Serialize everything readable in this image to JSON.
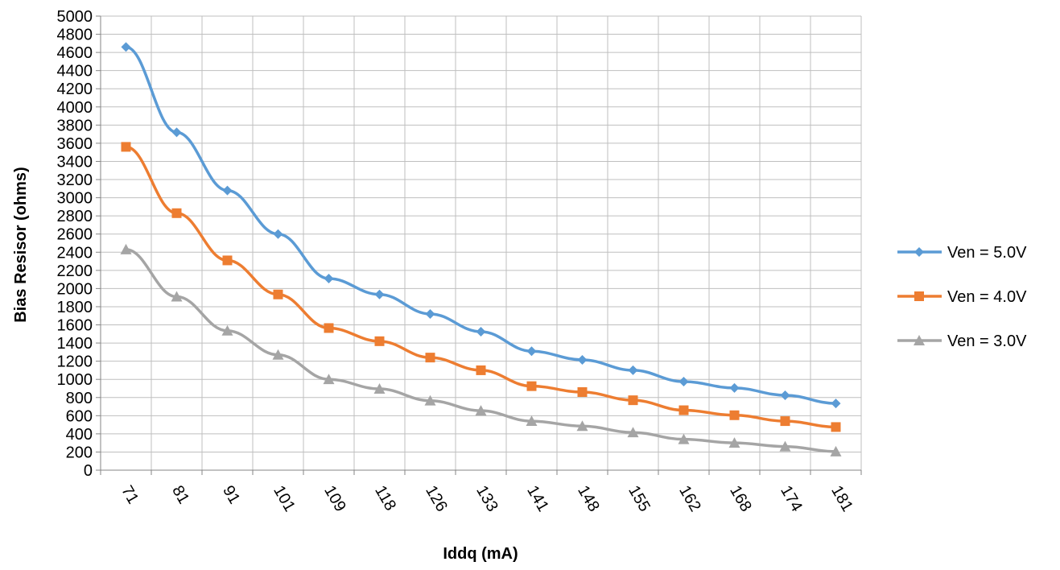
{
  "chart_data": {
    "type": "line",
    "title": "",
    "xlabel": "Iddq (mA)",
    "ylabel": "Bias Resisor (ohms)",
    "categories": [
      "71",
      "81",
      "91",
      "101",
      "109",
      "118",
      "126",
      "133",
      "141",
      "148",
      "155",
      "162",
      "168",
      "174",
      "181"
    ],
    "ylim": [
      0,
      5000
    ],
    "ytick_step": 200,
    "grid": true,
    "legend_position": "right",
    "series": [
      {
        "name": "Ven = 5.0V",
        "color": "#5b9bd5",
        "marker": "diamond",
        "values": [
          4660,
          3720,
          3080,
          2600,
          2110,
          1935,
          1720,
          1525,
          1310,
          1215,
          1100,
          975,
          905,
          825,
          735
        ]
      },
      {
        "name": "Ven = 4.0V",
        "color": "#ed7d31",
        "marker": "square",
        "values": [
          3560,
          2830,
          2310,
          1935,
          1565,
          1420,
          1240,
          1100,
          925,
          860,
          770,
          660,
          605,
          540,
          475
        ]
      },
      {
        "name": "Ven = 3.0V",
        "color": "#a5a5a5",
        "marker": "triangle",
        "values": [
          2430,
          1910,
          1535,
          1270,
          1000,
          895,
          765,
          655,
          540,
          485,
          415,
          340,
          300,
          260,
          205
        ]
      }
    ]
  }
}
